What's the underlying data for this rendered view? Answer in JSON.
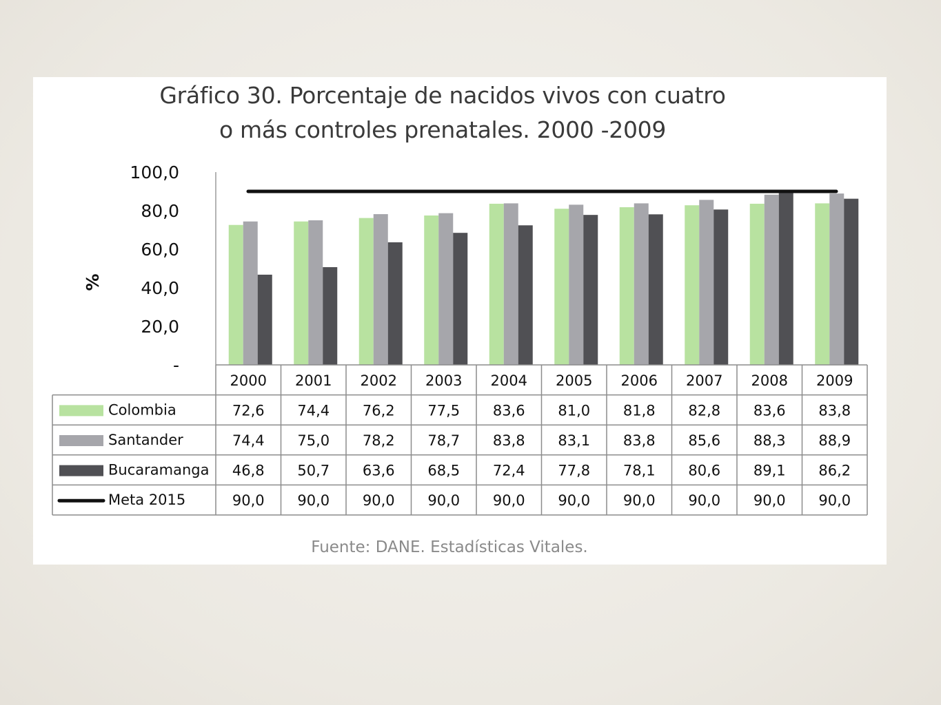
{
  "chart_data": {
    "type": "bar",
    "title": "Gráfico 30.  Porcentaje de nacidos vivos con cuatro o más controles prenatales. 2000 -2009",
    "title_lines": [
      "Gráfico 30.  Porcentaje de nacidos vivos con cuatro",
      "o más controles prenatales. 2000 -2009"
    ],
    "ylabel": "%",
    "ylim": [
      0,
      100
    ],
    "yticks": [
      "100,0",
      "80,0",
      "60,0",
      "40,0",
      "20,0",
      "-"
    ],
    "categories": [
      "2000",
      "2001",
      "2002",
      "2003",
      "2004",
      "2005",
      "2006",
      "2007",
      "2008",
      "2009"
    ],
    "series": [
      {
        "name": "Colombia",
        "type": "bar",
        "color": "#b8e2a0",
        "values": [
          72.6,
          74.4,
          76.2,
          77.5,
          83.6,
          81.0,
          81.8,
          82.8,
          83.6,
          83.8
        ],
        "labels": [
          "72,6",
          "74,4",
          "76,2",
          "77,5",
          "83,6",
          "81,0",
          "81,8",
          "82,8",
          "83,6",
          "83,8"
        ]
      },
      {
        "name": "Santander",
        "type": "bar",
        "color": "#a6a6ab",
        "values": [
          74.4,
          75.0,
          78.2,
          78.7,
          83.8,
          83.1,
          83.8,
          85.6,
          88.3,
          88.9
        ],
        "labels": [
          "74,4",
          "75,0",
          "78,2",
          "78,7",
          "83,8",
          "83,1",
          "83,8",
          "85,6",
          "88,3",
          "88,9"
        ]
      },
      {
        "name": "Bucaramanga",
        "type": "bar",
        "color": "#505054",
        "values": [
          46.8,
          50.7,
          63.6,
          68.5,
          72.4,
          77.8,
          78.1,
          80.6,
          89.1,
          86.2
        ],
        "labels": [
          "46,8",
          "50,7",
          "63,6",
          "68,5",
          "72,4",
          "77,8",
          "78,1",
          "80,6",
          "89,1",
          "86,2"
        ]
      },
      {
        "name": "Meta 2015",
        "type": "line",
        "color": "#111111",
        "values": [
          90.0,
          90.0,
          90.0,
          90.0,
          90.0,
          90.0,
          90.0,
          90.0,
          90.0,
          90.0
        ],
        "labels": [
          "90,0",
          "90,0",
          "90,0",
          "90,0",
          "90,0",
          "90,0",
          "90,0",
          "90,0",
          "90,0",
          "90,0"
        ]
      }
    ],
    "legend": "data table below plot"
  },
  "source": "Fuente: DANE. Estadísticas Vitales."
}
